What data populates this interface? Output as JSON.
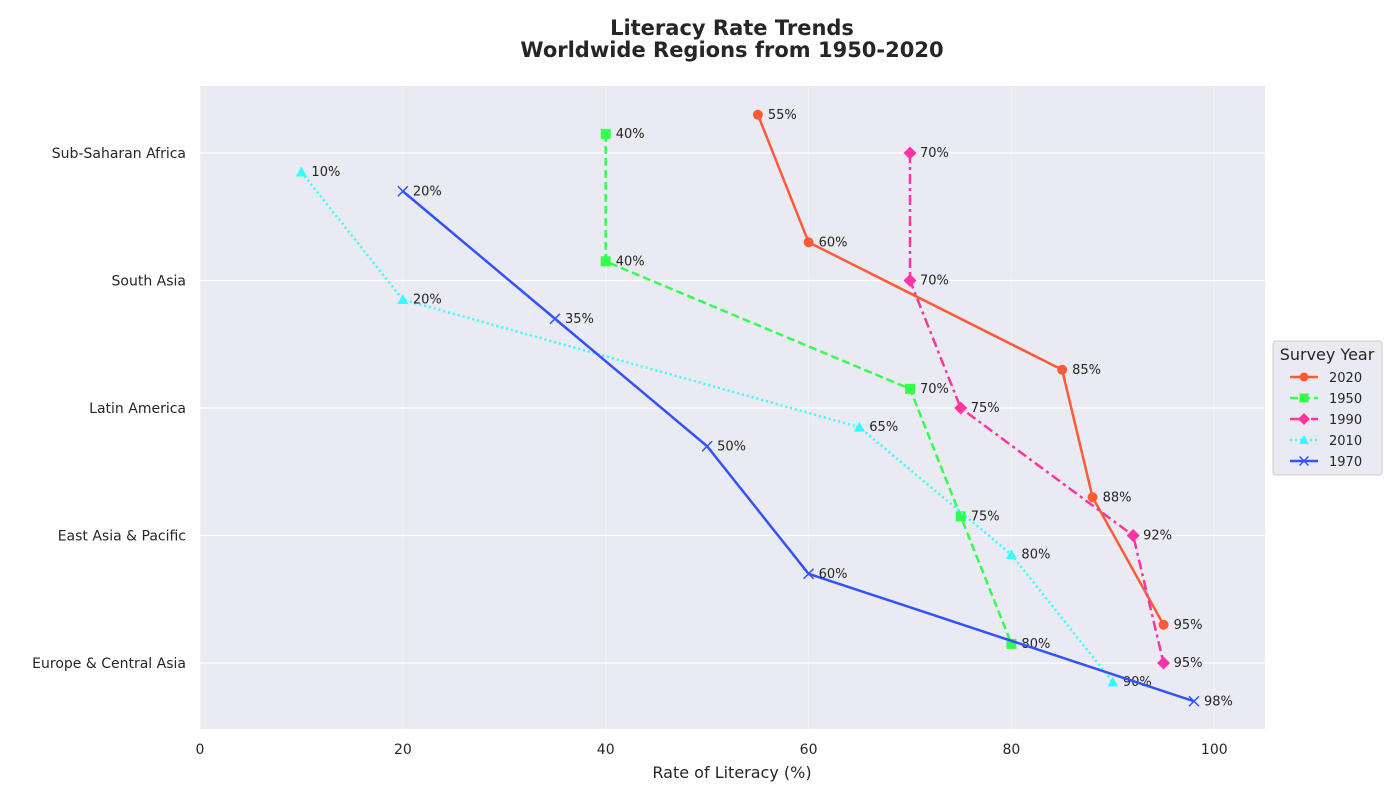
{
  "chart_data": {
    "type": "line",
    "title": "Literacy Rate Trends",
    "subtitle": "Worldwide Regions from 1950-2020",
    "xlabel": "Rate of Literacy (%)",
    "ylabel": "",
    "xlim": [
      0,
      105
    ],
    "xticks": [
      "0",
      "20",
      "40",
      "60",
      "80",
      "100"
    ],
    "categories": [
      "Sub-Saharan Africa",
      "South Asia",
      "Latin America",
      "East Asia & Pacific",
      "Europe & Central Asia"
    ],
    "grid": true,
    "legend": {
      "title": "Survey Year",
      "placement": "right"
    },
    "series": [
      {
        "name": "2020",
        "color": "#ff5a36",
        "dash": "solid",
        "marker": "circle",
        "offset": -0.3,
        "values": [
          55,
          60,
          85,
          88,
          95
        ],
        "labels": [
          "55%",
          "60%",
          "85%",
          "88%",
          "95%"
        ]
      },
      {
        "name": "1950",
        "color": "#33ff4d",
        "dash": "dashed",
        "marker": "square",
        "offset": -0.15,
        "values": [
          40,
          40,
          70,
          75,
          80
        ],
        "labels": [
          "40%",
          "40%",
          "70%",
          "75%",
          "80%"
        ]
      },
      {
        "name": "1990",
        "color": "#ff33a1",
        "dash": "dashdot",
        "marker": "diamond",
        "offset": 0,
        "values": [
          70,
          70,
          75,
          92,
          95
        ],
        "labels": [
          "70%",
          "70%",
          "75%",
          "92%",
          "95%"
        ]
      },
      {
        "name": "2010",
        "color": "#33ffff",
        "dash": "dotted",
        "marker": "triangle",
        "offset": 0.15,
        "values": [
          10,
          20,
          65,
          80,
          90
        ],
        "labels": [
          "10%",
          "20%",
          "65%",
          "80%",
          "90%"
        ]
      },
      {
        "name": "1970",
        "color": "#3352ff",
        "dash": "solid",
        "marker": "x",
        "offset": 0.3,
        "values": [
          20,
          35,
          50,
          60,
          98
        ],
        "labels": [
          "20%",
          "35%",
          "50%",
          "60%",
          "98%"
        ]
      }
    ]
  }
}
